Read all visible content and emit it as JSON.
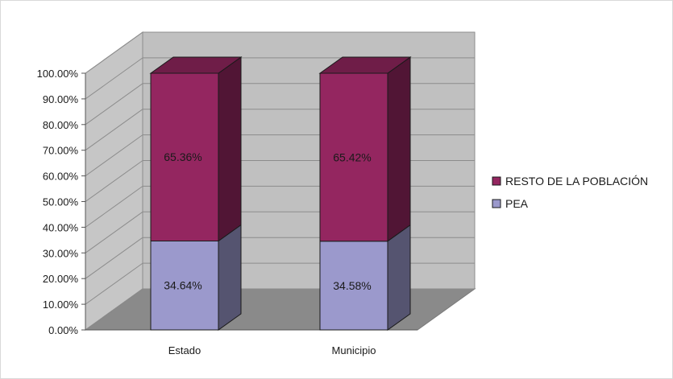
{
  "chart_data": {
    "type": "bar",
    "stacked": true,
    "three_d": true,
    "categories": [
      "Estado",
      "Municipio"
    ],
    "series": [
      {
        "name": "PEA",
        "values": [
          34.64,
          34.58
        ],
        "labels": [
          "34.64%",
          "34.58%"
        ],
        "color": "#9b99cc"
      },
      {
        "name": "RESTO DE LA POBLACIÓN",
        "values": [
          65.36,
          65.42
        ],
        "labels": [
          "65.36%",
          "65.42%"
        ],
        "color": "#942660"
      }
    ],
    "y_ticks": [
      "0.00%",
      "10.00%",
      "20.00%",
      "30.00%",
      "40.00%",
      "50.00%",
      "60.00%",
      "70.00%",
      "80.00%",
      "90.00%",
      "100.00%"
    ],
    "ylim": [
      0,
      100
    ],
    "grid": true,
    "legend_position": "right",
    "title": "",
    "xlabel": "",
    "ylabel": "",
    "colors": {
      "wall": "#c0c0c0",
      "side_wall": "#c6c6c6",
      "floor": "#8a8a8a",
      "gridline": "#8c8c8c"
    }
  }
}
